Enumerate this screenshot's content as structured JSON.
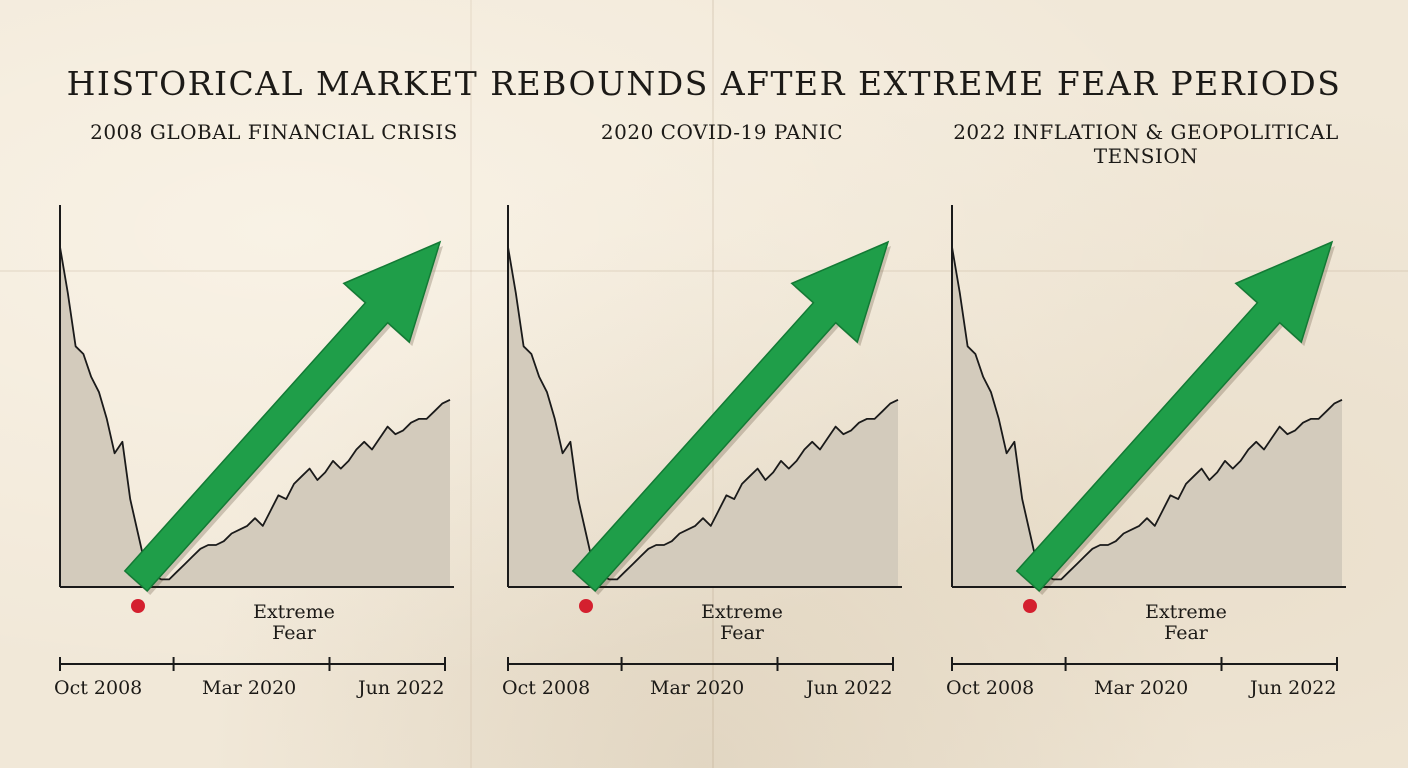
{
  "title": "HISTORICAL MARKET REBOUNDS AFTER EXTREME FEAR PERIODS",
  "colors": {
    "background": "#f1e8d8",
    "area_fill": "#d3cbbc",
    "line": "#1a1a1a",
    "arrow": "#1f9e49",
    "arrow_edge": "#137a35",
    "fear_marker": "#d4202f"
  },
  "chart_data": [
    {
      "type": "area",
      "title": "2008 GLOBAL FINANCIAL CRISIS",
      "annotation": "Extreme Fear",
      "x_ticks": [
        "Oct 2008",
        "Mar 2020",
        "Jun 2022"
      ],
      "x": [
        0,
        1,
        2,
        3,
        4,
        5,
        6,
        7,
        8,
        9,
        10,
        11,
        12,
        13,
        14,
        15,
        16,
        17,
        18,
        19,
        20,
        21,
        22,
        23,
        24,
        25,
        26,
        27,
        28,
        29,
        30,
        31,
        32,
        33,
        34,
        35,
        36,
        37,
        38,
        39,
        40,
        41,
        42,
        43,
        44,
        45,
        46,
        47,
        48,
        49,
        50
      ],
      "y": [
        89,
        77,
        63,
        61,
        55,
        51,
        44,
        35,
        38,
        23,
        14,
        5,
        3,
        2,
        2,
        4,
        6,
        8,
        10,
        11,
        11,
        12,
        14,
        15,
        16,
        18,
        16,
        20,
        24,
        23,
        27,
        29,
        31,
        28,
        30,
        33,
        31,
        33,
        36,
        38,
        36,
        39,
        42,
        40,
        41,
        43,
        44,
        44,
        46,
        48,
        49
      ],
      "arrow": "up-right",
      "fear_marker_x": 10
    },
    {
      "type": "area",
      "title": "2020 COVID-19 PANIC",
      "annotation": "Extreme Fear",
      "x_ticks": [
        "Oct 2008",
        "Mar 2020",
        "Jun 2022"
      ],
      "x": [
        0,
        1,
        2,
        3,
        4,
        5,
        6,
        7,
        8,
        9,
        10,
        11,
        12,
        13,
        14,
        15,
        16,
        17,
        18,
        19,
        20,
        21,
        22,
        23,
        24,
        25,
        26,
        27,
        28,
        29,
        30,
        31,
        32,
        33,
        34,
        35,
        36,
        37,
        38,
        39,
        40,
        41,
        42,
        43,
        44,
        45,
        46,
        47,
        48,
        49,
        50
      ],
      "y": [
        89,
        77,
        63,
        61,
        55,
        51,
        44,
        35,
        38,
        23,
        14,
        5,
        3,
        2,
        2,
        4,
        6,
        8,
        10,
        11,
        11,
        12,
        14,
        15,
        16,
        18,
        16,
        20,
        24,
        23,
        27,
        29,
        31,
        28,
        30,
        33,
        31,
        33,
        36,
        38,
        36,
        39,
        42,
        40,
        41,
        43,
        44,
        44,
        46,
        48,
        49
      ],
      "arrow": "up-right",
      "fear_marker_x": 10
    },
    {
      "type": "area",
      "title": "2022 INFLATION & GEOPOLITICAL TENSION",
      "annotation": "Extreme Fear",
      "x_ticks": [
        "Oct 2008",
        "Mar 2020",
        "Jun 2022"
      ],
      "x": [
        0,
        1,
        2,
        3,
        4,
        5,
        6,
        7,
        8,
        9,
        10,
        11,
        12,
        13,
        14,
        15,
        16,
        17,
        18,
        19,
        20,
        21,
        22,
        23,
        24,
        25,
        26,
        27,
        28,
        29,
        30,
        31,
        32,
        33,
        34,
        35,
        36,
        37,
        38,
        39,
        40,
        41,
        42,
        43,
        44,
        45,
        46,
        47,
        48,
        49,
        50
      ],
      "y": [
        89,
        77,
        63,
        61,
        55,
        51,
        44,
        35,
        38,
        23,
        14,
        5,
        3,
        2,
        2,
        4,
        6,
        8,
        10,
        11,
        11,
        12,
        14,
        15,
        16,
        18,
        16,
        20,
        24,
        23,
        27,
        29,
        31,
        28,
        30,
        33,
        31,
        33,
        36,
        38,
        36,
        39,
        42,
        40,
        41,
        43,
        44,
        44,
        46,
        48,
        49
      ],
      "arrow": "up-right",
      "fear_marker_x": 10
    }
  ]
}
